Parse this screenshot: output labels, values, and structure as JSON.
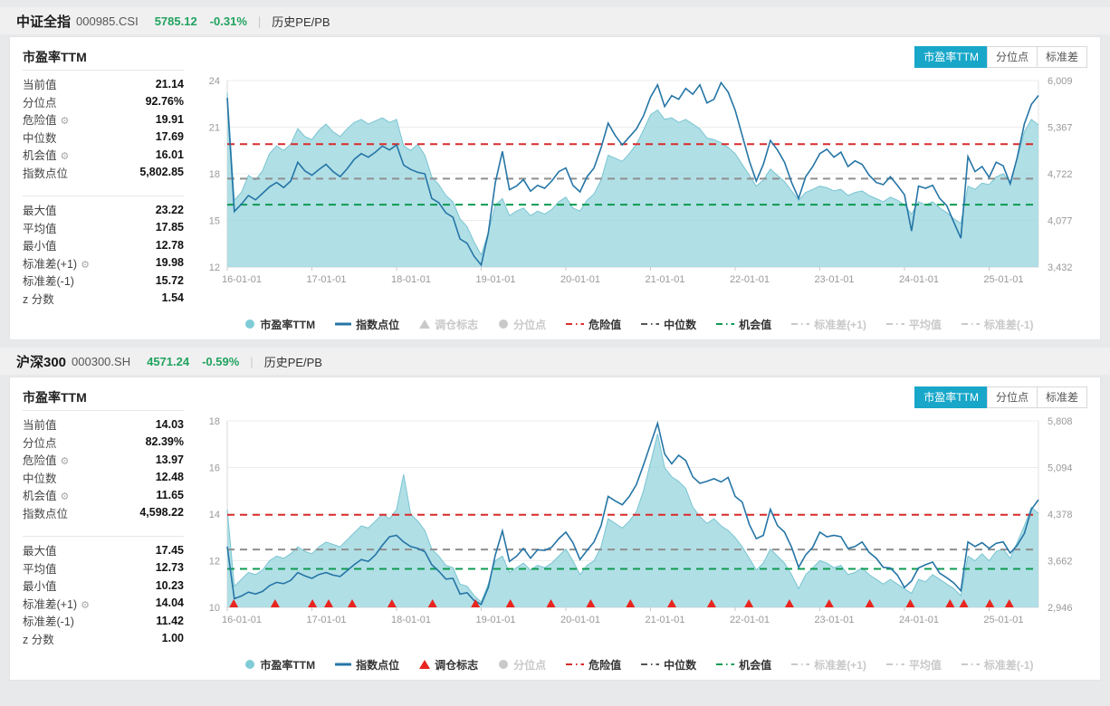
{
  "colors": {
    "accent_tab": "#18a7c9",
    "area_fill": "#9ed7e0",
    "area_stroke": "#79c5d2",
    "index_line": "#2575a6",
    "danger": "#d92b2b",
    "median": "#777777",
    "chance": "#0d9b50",
    "down_green": "#21a35e",
    "marker_red": "#e8251f",
    "disabled": "#c9c9c9"
  },
  "panels": [
    {
      "header": {
        "title": "中证全指",
        "code": "000985.CSI",
        "price": "5785.12",
        "change": "-0.31%",
        "divider": "|",
        "menu": "历史PE/PB"
      },
      "panel_title": "市盈率TTM",
      "tabs": [
        {
          "name": "tab-pe-ttm",
          "label": "市盈率TTM",
          "active": true
        },
        {
          "name": "tab-percentile",
          "label": "分位点",
          "active": false
        },
        {
          "name": "tab-stddev",
          "label": "标准差",
          "active": false
        }
      ],
      "stats_groups": [
        [
          {
            "label": "当前值",
            "value": "21.14",
            "gear": false
          },
          {
            "label": "分位点",
            "value": "92.76%",
            "gear": false
          },
          {
            "label": "危险值",
            "value": "19.91",
            "gear": true
          },
          {
            "label": "中位数",
            "value": "17.69",
            "gear": false
          },
          {
            "label": "机会值",
            "value": "16.01",
            "gear": true
          },
          {
            "label": "指数点位",
            "value": "5,802.85",
            "gear": false
          }
        ],
        [
          {
            "label": "最大值",
            "value": "23.22",
            "gear": false
          },
          {
            "label": "平均值",
            "value": "17.85",
            "gear": false
          },
          {
            "label": "最小值",
            "value": "12.78",
            "gear": false
          },
          {
            "label": "标准差(+1)",
            "value": "19.98",
            "gear": true
          },
          {
            "label": "标准差(-1)",
            "value": "15.72",
            "gear": false
          },
          {
            "label": "z 分数",
            "value": "1.54",
            "gear": false
          }
        ]
      ],
      "legend": [
        {
          "label": "市盈率TTM",
          "marker": "circle",
          "color": "#7fccd8",
          "enabled": true
        },
        {
          "label": "指数点位",
          "marker": "line",
          "color": "#2575a6",
          "enabled": true
        },
        {
          "label": "调仓标志",
          "marker": "triangle",
          "color": "#c9c9c9",
          "enabled": false
        },
        {
          "label": "分位点",
          "marker": "circle",
          "color": "#c9c9c9",
          "enabled": false
        },
        {
          "label": "危险值",
          "marker": "dashdot",
          "color": "#d92b2b",
          "enabled": true
        },
        {
          "label": "中位数",
          "marker": "dashdot",
          "color": "#555555",
          "enabled": true
        },
        {
          "label": "机会值",
          "marker": "dashdot",
          "color": "#0d9b50",
          "enabled": true
        },
        {
          "label": "标准差(+1)",
          "marker": "dashdot",
          "color": "#c9c9c9",
          "enabled": false
        },
        {
          "label": "平均值",
          "marker": "dashdot",
          "color": "#c9c9c9",
          "enabled": false
        },
        {
          "label": "标准差(-1)",
          "marker": "dashdot",
          "color": "#c9c9c9",
          "enabled": false
        }
      ]
    },
    {
      "header": {
        "title": "沪深300",
        "code": "000300.SH",
        "price": "4571.24",
        "change": "-0.59%",
        "divider": "|",
        "menu": "历史PE/PB"
      },
      "panel_title": "市盈率TTM",
      "tabs": [
        {
          "name": "tab-pe-ttm",
          "label": "市盈率TTM",
          "active": true
        },
        {
          "name": "tab-percentile",
          "label": "分位点",
          "active": false
        },
        {
          "name": "tab-stddev",
          "label": "标准差",
          "active": false
        }
      ],
      "stats_groups": [
        [
          {
            "label": "当前值",
            "value": "14.03",
            "gear": false
          },
          {
            "label": "分位点",
            "value": "82.39%",
            "gear": false
          },
          {
            "label": "危险值",
            "value": "13.97",
            "gear": true
          },
          {
            "label": "中位数",
            "value": "12.48",
            "gear": false
          },
          {
            "label": "机会值",
            "value": "11.65",
            "gear": true
          },
          {
            "label": "指数点位",
            "value": "4,598.22",
            "gear": false
          }
        ],
        [
          {
            "label": "最大值",
            "value": "17.45",
            "gear": false
          },
          {
            "label": "平均值",
            "value": "12.73",
            "gear": false
          },
          {
            "label": "最小值",
            "value": "10.23",
            "gear": false
          },
          {
            "label": "标准差(+1)",
            "value": "14.04",
            "gear": true
          },
          {
            "label": "标准差(-1)",
            "value": "11.42",
            "gear": false
          },
          {
            "label": "z 分数",
            "value": "1.00",
            "gear": false
          }
        ]
      ],
      "legend": [
        {
          "label": "市盈率TTM",
          "marker": "circle",
          "color": "#7fccd8",
          "enabled": true
        },
        {
          "label": "指数点位",
          "marker": "line",
          "color": "#2575a6",
          "enabled": true
        },
        {
          "label": "调仓标志",
          "marker": "triangle",
          "color": "#e8251f",
          "enabled": true
        },
        {
          "label": "分位点",
          "marker": "circle",
          "color": "#c9c9c9",
          "enabled": false
        },
        {
          "label": "危险值",
          "marker": "dashdot",
          "color": "#d92b2b",
          "enabled": true
        },
        {
          "label": "中位数",
          "marker": "dashdot",
          "color": "#555555",
          "enabled": true
        },
        {
          "label": "机会值",
          "marker": "dashdot",
          "color": "#0d9b50",
          "enabled": true
        },
        {
          "label": "标准差(+1)",
          "marker": "dashdot",
          "color": "#c9c9c9",
          "enabled": false
        },
        {
          "label": "平均值",
          "marker": "dashdot",
          "color": "#c9c9c9",
          "enabled": false
        },
        {
          "label": "标准差(-1)",
          "marker": "dashdot",
          "color": "#c9c9c9",
          "enabled": false
        }
      ]
    }
  ],
  "chart_data": [
    {
      "type": "area+line",
      "title": "中证全指 市盈率TTM",
      "x_tick_labels": [
        "16-01-01",
        "17-01-01",
        "18-01-01",
        "19-01-01",
        "20-01-01",
        "21-01-01",
        "22-01-01",
        "23-01-01",
        "24-01-01",
        "25-01-01"
      ],
      "left_axis": {
        "range": [
          12,
          24
        ],
        "ticks": [
          24,
          21,
          18,
          15,
          12
        ]
      },
      "right_axis": {
        "range": [
          3432,
          6009
        ],
        "tick_labels": [
          "6,009",
          "5,367",
          "4,722",
          "4,077",
          "3,432"
        ]
      },
      "ref_lines": [
        {
          "name": "危险值",
          "value": 19.91,
          "color": "#d92b2b"
        },
        {
          "name": "中位数",
          "value": 17.69,
          "color": "#8f8f8f"
        },
        {
          "name": "机会值",
          "value": 16.01,
          "color": "#0d9b50"
        }
      ],
      "markers": [],
      "series": [
        {
          "name": "市盈率TTM",
          "type": "area",
          "axis": "left",
          "values": [
            23.22,
            16.3,
            16.8,
            17.9,
            17.6,
            18.2,
            19.3,
            19.8,
            19.5,
            19.9,
            20.9,
            20.4,
            20.2,
            20.8,
            21.2,
            20.7,
            20.4,
            20.9,
            21.3,
            21.5,
            21.2,
            21.4,
            21.6,
            21.3,
            21.5,
            19.8,
            19.5,
            19.9,
            19.2,
            17.8,
            17.3,
            16.6,
            16.2,
            15.1,
            14.6,
            13.6,
            12.78,
            14.2,
            16.0,
            16.4,
            15.3,
            15.6,
            15.8,
            15.3,
            15.6,
            15.4,
            15.7,
            16.2,
            16.5,
            15.8,
            15.6,
            16.3,
            16.7,
            17.6,
            19.2,
            19.0,
            18.8,
            19.3,
            19.9,
            20.8,
            21.8,
            22.1,
            21.5,
            21.6,
            21.3,
            21.5,
            21.2,
            20.9,
            20.3,
            20.2,
            20.0,
            19.7,
            19.3,
            18.6,
            17.9,
            17.2,
            17.6,
            18.3,
            17.9,
            17.5,
            16.9,
            16.3,
            16.8,
            17.0,
            17.2,
            17.1,
            16.9,
            17.0,
            16.6,
            16.8,
            16.9,
            16.6,
            16.4,
            16.2,
            16.5,
            16.3,
            16.0,
            15.4,
            16.2,
            16.0,
            16.2,
            15.8,
            15.5,
            15.1,
            14.8,
            17.2,
            17.0,
            17.4,
            17.3,
            17.8,
            18.0,
            17.5,
            19.0,
            20.7,
            21.5,
            21.14
          ]
        },
        {
          "name": "指数点位",
          "type": "line",
          "axis": "right",
          "values": [
            5770,
            4200,
            4300,
            4420,
            4360,
            4450,
            4540,
            4600,
            4530,
            4620,
            4880,
            4760,
            4700,
            4780,
            4850,
            4750,
            4680,
            4790,
            4920,
            5000,
            4950,
            5020,
            5105,
            5050,
            5120,
            4840,
            4780,
            4740,
            4720,
            4380,
            4320,
            4180,
            4120,
            3820,
            3760,
            3580,
            3460,
            3900,
            4600,
            5030,
            4500,
            4550,
            4640,
            4480,
            4560,
            4520,
            4620,
            4750,
            4800,
            4560,
            4470,
            4680,
            4800,
            5080,
            5420,
            5250,
            5120,
            5230,
            5340,
            5520,
            5780,
            5950,
            5650,
            5800,
            5750,
            5900,
            5820,
            5950,
            5700,
            5750,
            5980,
            5850,
            5600,
            5250,
            4900,
            4620,
            4850,
            5180,
            5050,
            4880,
            4600,
            4380,
            4680,
            4820,
            5000,
            5060,
            4950,
            5020,
            4820,
            4900,
            4850,
            4700,
            4600,
            4570,
            4680,
            4560,
            4430,
            3930,
            4550,
            4520,
            4560,
            4380,
            4280,
            4050,
            3830,
            4960,
            4750,
            4820,
            4670,
            4880,
            4830,
            4580,
            4950,
            5410,
            5680,
            5802.85
          ]
        }
      ]
    },
    {
      "type": "area+line",
      "title": "沪深300 市盈率TTM",
      "x_tick_labels": [
        "16-01-01",
        "17-01-01",
        "18-01-01",
        "19-01-01",
        "20-01-01",
        "21-01-01",
        "22-01-01",
        "23-01-01",
        "24-01-01",
        "25-01-01"
      ],
      "left_axis": {
        "range": [
          10,
          18
        ],
        "ticks": [
          18,
          16,
          14,
          12,
          10
        ]
      },
      "right_axis": {
        "range": [
          2946,
          5808
        ],
        "tick_labels": [
          "5,808",
          "5,094",
          "4,378",
          "3,662",
          "2,946"
        ]
      },
      "ref_lines": [
        {
          "name": "危险值",
          "value": 13.97,
          "color": "#d92b2b"
        },
        {
          "name": "中位数",
          "value": 12.48,
          "color": "#8f8f8f"
        },
        {
          "name": "机会值",
          "value": 11.65,
          "color": "#0d9b50"
        }
      ],
      "markers": [
        0.008,
        0.059,
        0.105,
        0.125,
        0.154,
        0.203,
        0.253,
        0.306,
        0.349,
        0.399,
        0.448,
        0.497,
        0.548,
        0.597,
        0.643,
        0.693,
        0.742,
        0.792,
        0.842,
        0.891,
        0.908,
        0.94,
        0.964
      ],
      "series": [
        {
          "name": "市盈率TTM",
          "type": "area",
          "axis": "left",
          "values": [
            14.2,
            10.9,
            11.2,
            11.5,
            11.4,
            11.6,
            12.0,
            12.2,
            12.1,
            12.3,
            12.6,
            12.4,
            12.3,
            12.6,
            12.8,
            12.7,
            12.6,
            12.9,
            13.2,
            13.5,
            13.4,
            13.7,
            14.0,
            13.8,
            14.2,
            15.7,
            14.0,
            13.7,
            13.3,
            12.5,
            12.2,
            11.8,
            11.7,
            11.0,
            10.9,
            10.5,
            10.23,
            11.0,
            12.0,
            12.2,
            11.5,
            11.7,
            11.9,
            11.6,
            11.8,
            11.7,
            11.9,
            12.2,
            12.5,
            12.0,
            11.4,
            11.8,
            12.0,
            12.6,
            13.8,
            13.6,
            13.4,
            13.7,
            14.1,
            15.0,
            16.2,
            17.45,
            16.0,
            15.6,
            15.4,
            15.1,
            14.3,
            13.9,
            13.6,
            13.8,
            13.5,
            13.3,
            13.0,
            12.6,
            12.1,
            11.6,
            11.9,
            12.5,
            12.2,
            11.9,
            11.4,
            10.8,
            11.4,
            11.7,
            12.0,
            11.9,
            11.7,
            11.8,
            11.4,
            11.5,
            11.7,
            11.4,
            11.2,
            11.0,
            11.2,
            11.0,
            10.8,
            10.6,
            11.2,
            11.1,
            11.4,
            11.2,
            11.0,
            10.8,
            10.5,
            12.2,
            12.0,
            12.3,
            12.0,
            12.4,
            12.5,
            12.1,
            12.8,
            13.5,
            14.3,
            14.03
          ]
        },
        {
          "name": "指数点位",
          "type": "line",
          "axis": "right",
          "values": [
            3880,
            3080,
            3120,
            3180,
            3150,
            3190,
            3280,
            3330,
            3310,
            3360,
            3480,
            3430,
            3390,
            3450,
            3480,
            3440,
            3420,
            3510,
            3600,
            3680,
            3650,
            3750,
            3900,
            4030,
            4050,
            3950,
            3880,
            3850,
            3800,
            3600,
            3500,
            3380,
            3390,
            3150,
            3170,
            3050,
            2990,
            3250,
            3750,
            4120,
            3650,
            3730,
            3850,
            3700,
            3830,
            3820,
            3870,
            4000,
            4100,
            3940,
            3680,
            3820,
            3950,
            4200,
            4650,
            4580,
            4520,
            4650,
            4830,
            5130,
            5450,
            5770,
            5300,
            5150,
            5280,
            5200,
            4950,
            4850,
            4880,
            4920,
            4870,
            4940,
            4650,
            4560,
            4220,
            4000,
            4050,
            4450,
            4200,
            4100,
            3870,
            3560,
            3750,
            3870,
            4100,
            4030,
            4050,
            4030,
            3850,
            3880,
            3950,
            3790,
            3700,
            3560,
            3550,
            3440,
            3250,
            3350,
            3550,
            3600,
            3640,
            3470,
            3400,
            3320,
            3200,
            3950,
            3880,
            3940,
            3850,
            3930,
            3950,
            3780,
            3900,
            4080,
            4450,
            4598.22
          ]
        }
      ]
    }
  ]
}
